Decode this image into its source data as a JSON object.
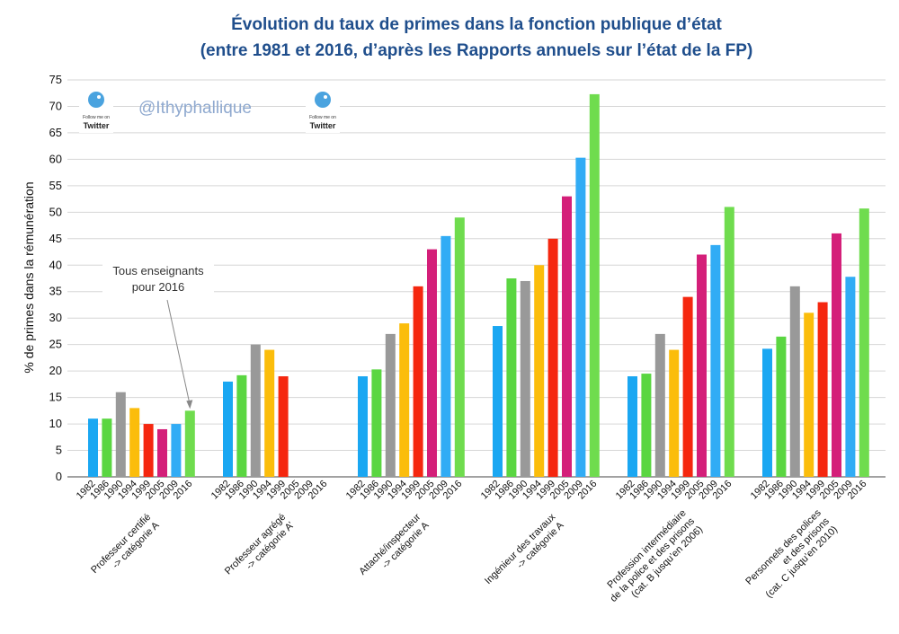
{
  "chart_data": {
    "type": "bar",
    "title": "Évolution du taux de primes dans la fonction publique d’état",
    "subtitle": "(entre 1981 et 2016, d’après les Rapports annuels sur l’état de la FP)",
    "ylabel": "% de primes dans la rémunération",
    "xlabel": "",
    "ylim": [
      0,
      75
    ],
    "yticks": [
      0,
      5,
      10,
      15,
      20,
      25,
      30,
      35,
      40,
      45,
      50,
      55,
      60,
      65,
      70,
      75
    ],
    "grid": true,
    "years": [
      "1982",
      "1986",
      "1990",
      "1994",
      "1999",
      "2005",
      "2009",
      "2016"
    ],
    "year_colors": [
      "#1aa7f2",
      "#5ad641",
      "#999999",
      "#fbbd0b",
      "#f5270f",
      "#d41f79",
      "#31acf5",
      "#6fdc4e"
    ],
    "categories": [
      {
        "label_lines": [
          "Professeur certifié",
          "-> catégorie A"
        ],
        "values": [
          11,
          11,
          16,
          13,
          10,
          9,
          10,
          12.5
        ]
      },
      {
        "label_lines": [
          "Professeur agrégé",
          "-> catégorie A’"
        ],
        "values": [
          18,
          19.2,
          25,
          24,
          19,
          null,
          null,
          null
        ]
      },
      {
        "label_lines": [
          "Attaché/inspecteur",
          "-> catégorie A"
        ],
        "values": [
          19,
          20.3,
          27,
          29,
          36,
          43,
          45.5,
          49
        ]
      },
      {
        "label_lines": [
          "Ingénieur des travaux",
          "-> catégorie A"
        ],
        "values": [
          28.5,
          37.5,
          37,
          40,
          45,
          53,
          60.3,
          72.3
        ]
      },
      {
        "label_lines": [
          "Profession intermédiaire",
          "de la police et des prisons",
          "(cat. B jusqu’en 2006)"
        ],
        "values": [
          19,
          19.5,
          27,
          24,
          34,
          42,
          43.8,
          51
        ]
      },
      {
        "label_lines": [
          "Personnels des polices",
          "et des prisons",
          "(cat. C jusqu’en 2010)"
        ],
        "values": [
          24.2,
          26.5,
          36,
          31,
          33,
          46,
          37.8,
          50.7
        ]
      }
    ],
    "annotation": {
      "lines": [
        "Tous enseignants",
        "pour 2016"
      ],
      "category_index": 0,
      "year_index": 7
    }
  },
  "watermark": {
    "handle": "@Ithyphallique",
    "badge_small": "Follow me on",
    "badge_big": "Twitter"
  }
}
